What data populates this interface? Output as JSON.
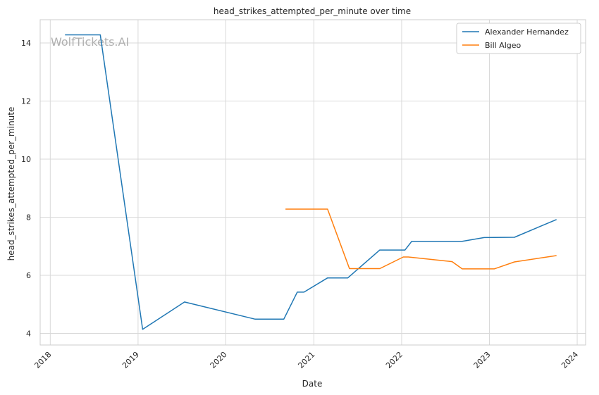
{
  "chart_data": {
    "type": "line",
    "title": "head_strikes_attempted_per_minute over time",
    "xlabel": "Date",
    "ylabel": "head_strikes_attempted_per_minute",
    "watermark": "WolfTickets.AI",
    "x_ticks": [
      "2018",
      "2019",
      "2020",
      "2021",
      "2022",
      "2023",
      "2024"
    ],
    "y_ticks": [
      "4",
      "6",
      "8",
      "10",
      "12",
      "14"
    ],
    "xlim": [
      "2017-11-20",
      "2024-02-05"
    ],
    "ylim": [
      3.6,
      14.8
    ],
    "grid": true,
    "legend_position": "top-right",
    "colors": {
      "series1": "#1f77b4",
      "series2": "#ff7f0e",
      "grid": "#d9d9d9",
      "spine": "#cccccc"
    },
    "series": [
      {
        "name": "Alexander Hernandez",
        "color": "#1f77b4",
        "points": [
          [
            "2018-03-03",
            14.28
          ],
          [
            "2018-07-28",
            14.28
          ],
          [
            "2019-01-20",
            4.14
          ],
          [
            "2019-07-13",
            5.08
          ],
          [
            "2020-05-02",
            4.49
          ],
          [
            "2020-08-29",
            4.49
          ],
          [
            "2020-10-24",
            5.42
          ],
          [
            "2020-11-21",
            5.42
          ],
          [
            "2021-02-27",
            5.91
          ],
          [
            "2021-05-22",
            5.91
          ],
          [
            "2021-10-02",
            6.87
          ],
          [
            "2022-01-15",
            6.87
          ],
          [
            "2022-02-12",
            7.17
          ],
          [
            "2022-09-10",
            7.17
          ],
          [
            "2022-12-10",
            7.3
          ],
          [
            "2023-04-15",
            7.31
          ],
          [
            "2023-10-07",
            7.92
          ]
        ]
      },
      {
        "name": "Bill Algeo",
        "color": "#ff7f0e",
        "points": [
          [
            "2020-09-05",
            8.28
          ],
          [
            "2021-02-27",
            8.28
          ],
          [
            "2021-05-29",
            6.23
          ],
          [
            "2021-10-02",
            6.23
          ],
          [
            "2022-01-08",
            6.63
          ],
          [
            "2022-01-29",
            6.63
          ],
          [
            "2022-07-30",
            6.47
          ],
          [
            "2022-09-10",
            6.22
          ],
          [
            "2023-01-21",
            6.22
          ],
          [
            "2023-04-15",
            6.46
          ],
          [
            "2023-10-07",
            6.68
          ]
        ]
      }
    ]
  }
}
